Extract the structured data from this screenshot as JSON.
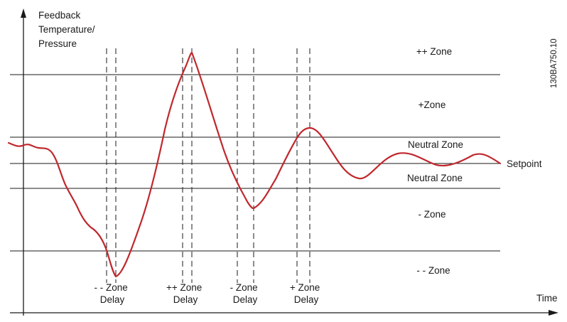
{
  "diagram": {
    "y_axis_label": [
      "Feedback",
      "Temperature/",
      "Pressure"
    ],
    "x_axis_label": "Time",
    "code": "130BA750.10",
    "zones": {
      "pp": "++ Zone",
      "p": "+Zone",
      "neutral_upper": "Neutral Zone",
      "neutral_lower": "Neutral Zone",
      "m": "- Zone",
      "mm": "- - Zone"
    },
    "setpoint_label": "Setpoint",
    "delays": [
      {
        "line1": "- - Zone",
        "line2": "Delay"
      },
      {
        "line1": "++ Zone",
        "line2": "Delay"
      },
      {
        "line1": "- Zone",
        "line2": "Delay"
      },
      {
        "line1": "+ Zone",
        "line2": "Delay"
      }
    ],
    "colors": {
      "curve": "#c0282d",
      "lines": "#1a1a1a",
      "background": "#ffffff"
    }
  }
}
